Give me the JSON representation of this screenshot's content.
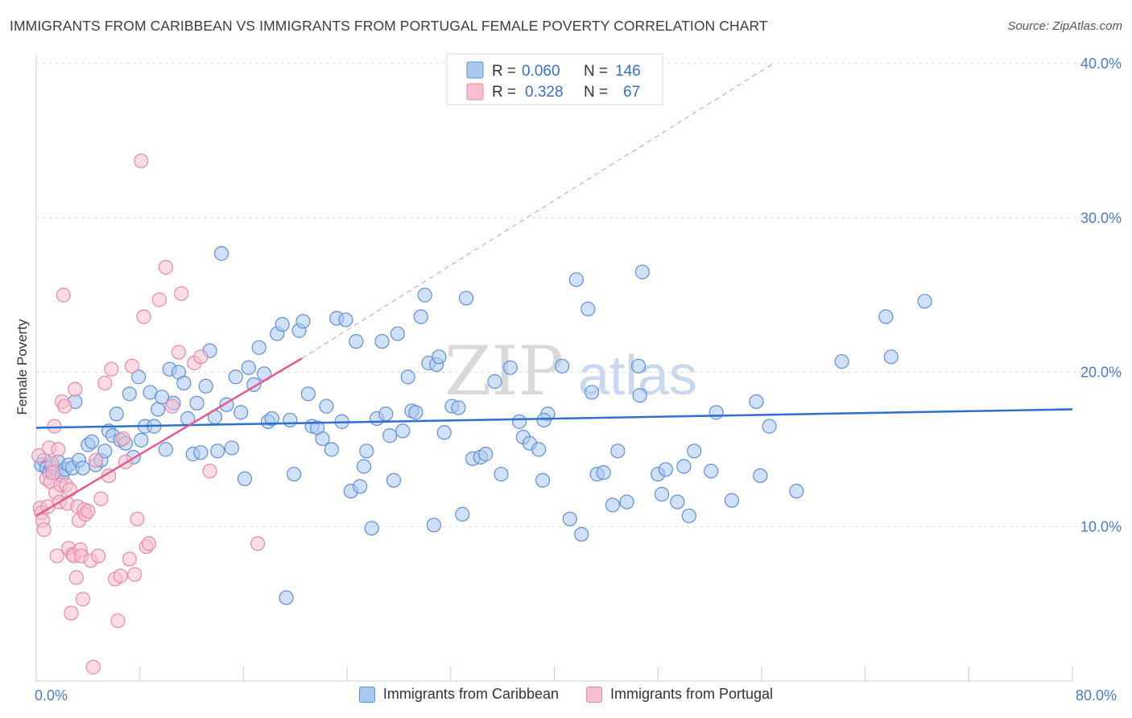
{
  "title": "IMMIGRANTS FROM CARIBBEAN VS IMMIGRANTS FROM PORTUGAL FEMALE POVERTY CORRELATION CHART",
  "source": "Source: ZipAtlas.com",
  "watermark": {
    "zip": "ZIP",
    "atlas": "atlas"
  },
  "legend": {
    "r_label": "R =",
    "n_label": "N =",
    "rows": [
      {
        "r": "0.060",
        "n": "146",
        "fill": "#a9c8f0",
        "stroke": "#5f8fd6"
      },
      {
        "r": "0.328",
        "n": "67",
        "fill": "#f7bfd0",
        "stroke": "#e889a8"
      }
    ]
  },
  "bottom_legend": [
    {
      "label": "Immigrants from Caribbean",
      "fill": "#a9c8f0",
      "stroke": "#5f8fd6"
    },
    {
      "label": "Immigrants from Portugal",
      "fill": "#f7bfd0",
      "stroke": "#e889a8"
    }
  ],
  "chart_data": {
    "type": "scatter",
    "title": "IMMIGRANTS FROM CARIBBEAN VS IMMIGRANTS FROM PORTUGAL FEMALE POVERTY CORRELATION CHART",
    "xlabel": "",
    "ylabel": "Female Poverty",
    "xlim": [
      0,
      80
    ],
    "ylim": [
      0,
      40
    ],
    "x_tick_labels": [
      "0.0%",
      "80.0%"
    ],
    "y_ticks": [
      10,
      20,
      30,
      40
    ],
    "y_tick_labels": [
      "10.0%",
      "20.0%",
      "30.0%",
      "40.0%"
    ],
    "grid": true,
    "legend_position": "top-center",
    "series": [
      {
        "name": "Immigrants from Caribbean",
        "color": "#5f8fd6",
        "fill": "#a9c8f0",
        "trend": {
          "x": [
            0,
            80
          ],
          "y": [
            16.4,
            17.6
          ],
          "color": "#2f6fcc"
        },
        "points": [
          [
            0.4,
            14
          ],
          [
            0.6,
            14.3
          ],
          [
            0.8,
            13.8
          ],
          [
            1,
            13.5
          ],
          [
            1.2,
            13.9
          ],
          [
            1.5,
            13.6
          ],
          [
            1.7,
            14.2
          ],
          [
            2,
            13.3
          ],
          [
            2.2,
            13.7
          ],
          [
            2.5,
            14
          ],
          [
            2.8,
            13.8
          ],
          [
            3,
            18.1
          ],
          [
            3.3,
            14.3
          ],
          [
            3.6,
            13.8
          ],
          [
            4,
            15.3
          ],
          [
            4.3,
            15.5
          ],
          [
            4.6,
            14
          ],
          [
            5,
            14.3
          ],
          [
            5.3,
            14.9
          ],
          [
            5.6,
            16.2
          ],
          [
            5.9,
            15.9
          ],
          [
            6.2,
            17.3
          ],
          [
            6.5,
            15.6
          ],
          [
            6.9,
            15.4
          ],
          [
            7.2,
            18.6
          ],
          [
            7.5,
            14.5
          ],
          [
            7.9,
            19.7
          ],
          [
            8.1,
            15.6
          ],
          [
            8.4,
            16.5
          ],
          [
            8.8,
            18.7
          ],
          [
            9.1,
            16.5
          ],
          [
            9.4,
            17.6
          ],
          [
            9.7,
            18.4
          ],
          [
            10,
            15
          ],
          [
            10.3,
            20.2
          ],
          [
            10.6,
            18
          ],
          [
            11,
            20
          ],
          [
            11.4,
            19.3
          ],
          [
            11.7,
            17
          ],
          [
            12.1,
            14.7
          ],
          [
            12.4,
            18
          ],
          [
            12.7,
            14.8
          ],
          [
            13.1,
            19.1
          ],
          [
            13.4,
            21.4
          ],
          [
            13.8,
            17.1
          ],
          [
            14,
            14.9
          ],
          [
            14.3,
            27.7
          ],
          [
            14.7,
            17.9
          ],
          [
            15.1,
            15.1
          ],
          [
            15.4,
            19.7
          ],
          [
            15.8,
            17.4
          ],
          [
            16.1,
            13.1
          ],
          [
            16.4,
            20.3
          ],
          [
            16.8,
            19.2
          ],
          [
            17.2,
            21.6
          ],
          [
            17.6,
            19.9
          ],
          [
            17.9,
            16.8
          ],
          [
            18.2,
            17
          ],
          [
            18.6,
            22.5
          ],
          [
            19,
            23.1
          ],
          [
            19.3,
            5.4
          ],
          [
            19.6,
            16.9
          ],
          [
            19.9,
            13.4
          ],
          [
            20.3,
            22.7
          ],
          [
            20.6,
            23.3
          ],
          [
            21,
            18.6
          ],
          [
            21.3,
            16.5
          ],
          [
            21.7,
            16.4
          ],
          [
            22.1,
            15.7
          ],
          [
            22.4,
            17.8
          ],
          [
            22.8,
            15
          ],
          [
            23.2,
            23.5
          ],
          [
            23.6,
            16.8
          ],
          [
            23.9,
            23.4
          ],
          [
            24.3,
            12.3
          ],
          [
            24.7,
            22
          ],
          [
            25,
            12.6
          ],
          [
            25.3,
            13.9
          ],
          [
            25.5,
            14.9
          ],
          [
            25.9,
            9.9
          ],
          [
            26.3,
            17
          ],
          [
            26.7,
            22
          ],
          [
            27,
            17.3
          ],
          [
            27.3,
            15.9
          ],
          [
            27.6,
            13
          ],
          [
            27.9,
            22.5
          ],
          [
            28.3,
            16.2
          ],
          [
            28.7,
            19.7
          ],
          [
            29,
            17.5
          ],
          [
            29.3,
            17.4
          ],
          [
            29.7,
            23.6
          ],
          [
            30,
            25
          ],
          [
            30.3,
            20.6
          ],
          [
            30.7,
            10.1
          ],
          [
            30.9,
            20.5
          ],
          [
            31.1,
            21
          ],
          [
            31.5,
            16.1
          ],
          [
            32.1,
            17.8
          ],
          [
            32.6,
            17.7
          ],
          [
            32.9,
            10.8
          ],
          [
            33.2,
            24.8
          ],
          [
            33.7,
            14.4
          ],
          [
            34.3,
            14.5
          ],
          [
            34.7,
            14.7
          ],
          [
            35.4,
            19.4
          ],
          [
            35.9,
            13.4
          ],
          [
            36.6,
            20.3
          ],
          [
            37.3,
            16.8
          ],
          [
            37.6,
            15.8
          ],
          [
            38.1,
            15.4
          ],
          [
            38.8,
            15
          ],
          [
            39.1,
            13
          ],
          [
            39.5,
            17.3
          ],
          [
            39.2,
            16.9
          ],
          [
            40.6,
            20.4
          ],
          [
            41.2,
            10.5
          ],
          [
            41.7,
            26
          ],
          [
            42.1,
            9.5
          ],
          [
            42.6,
            24.1
          ],
          [
            42.9,
            18.7
          ],
          [
            43.3,
            13.4
          ],
          [
            43.8,
            13.5
          ],
          [
            44.5,
            11.4
          ],
          [
            44.9,
            14.9
          ],
          [
            45.6,
            11.6
          ],
          [
            46.6,
            18.5
          ],
          [
            46.8,
            26.5
          ],
          [
            46.5,
            20.4
          ],
          [
            48,
            13.4
          ],
          [
            48.3,
            12.1
          ],
          [
            48.6,
            13.7
          ],
          [
            49.5,
            11.6
          ],
          [
            50,
            13.9
          ],
          [
            50.8,
            14.9
          ],
          [
            50.4,
            10.7
          ],
          [
            52.1,
            13.6
          ],
          [
            52.5,
            17.4
          ],
          [
            53.7,
            11.7
          ],
          [
            55.6,
            18.1
          ],
          [
            55.9,
            13.3
          ],
          [
            56.6,
            16.5
          ],
          [
            58.7,
            12.3
          ],
          [
            62.2,
            20.7
          ],
          [
            65.6,
            23.6
          ],
          [
            66,
            21
          ],
          [
            68.6,
            24.6
          ]
        ]
      },
      {
        "name": "Immigrants from Portugal",
        "color": "#e889a8",
        "fill": "#f7bfd0",
        "trend": {
          "x": [
            0,
            20.5
          ],
          "y": [
            10.7,
            20.9
          ],
          "color": "#e45c8c"
        },
        "trend_ext": {
          "x": [
            20.5,
            56.9
          ],
          "y": [
            20.9,
            40.0
          ]
        },
        "points": [
          [
            0.2,
            14.6
          ],
          [
            0.3,
            11.2
          ],
          [
            0.4,
            10.9
          ],
          [
            0.5,
            10.4
          ],
          [
            0.6,
            9.8
          ],
          [
            0.8,
            13.1
          ],
          [
            0.9,
            11.3
          ],
          [
            1,
            15.1
          ],
          [
            1.1,
            12.9
          ],
          [
            1.2,
            14.1
          ],
          [
            1.3,
            13.5
          ],
          [
            1.4,
            16.5
          ],
          [
            1.5,
            12.2
          ],
          [
            1.6,
            8.1
          ],
          [
            1.7,
            15
          ],
          [
            1.8,
            11.6
          ],
          [
            1.9,
            12.7
          ],
          [
            2,
            18.1
          ],
          [
            2.1,
            25
          ],
          [
            2.2,
            17.8
          ],
          [
            2.3,
            12.7
          ],
          [
            2.4,
            11.5
          ],
          [
            2.5,
            8.6
          ],
          [
            2.6,
            12.4
          ],
          [
            2.7,
            4.4
          ],
          [
            2.8,
            8.2
          ],
          [
            2.9,
            8.1
          ],
          [
            3,
            18.9
          ],
          [
            3.1,
            6.7
          ],
          [
            3.2,
            11.3
          ],
          [
            3.3,
            10.4
          ],
          [
            3.4,
            8.5
          ],
          [
            3.5,
            8.1
          ],
          [
            3.6,
            5.3
          ],
          [
            3.7,
            11.1
          ],
          [
            3.8,
            10.8
          ],
          [
            4,
            11
          ],
          [
            4.2,
            7.8
          ],
          [
            4.4,
            0.9
          ],
          [
            4.6,
            14.3
          ],
          [
            4.8,
            8.1
          ],
          [
            5,
            11.8
          ],
          [
            5.3,
            19.3
          ],
          [
            5.6,
            13.3
          ],
          [
            5.8,
            20.2
          ],
          [
            6.1,
            6.6
          ],
          [
            6.3,
            3.9
          ],
          [
            6.5,
            6.8
          ],
          [
            6.7,
            15.7
          ],
          [
            6.9,
            14.2
          ],
          [
            7.2,
            7.9
          ],
          [
            7.4,
            20.4
          ],
          [
            7.6,
            6.9
          ],
          [
            7.8,
            10.5
          ],
          [
            8.1,
            33.7
          ],
          [
            8.3,
            23.6
          ],
          [
            8.5,
            8.7
          ],
          [
            8.7,
            8.9
          ],
          [
            9.5,
            24.7
          ],
          [
            10,
            26.8
          ],
          [
            10.5,
            17.8
          ],
          [
            11,
            21.3
          ],
          [
            11.2,
            25.1
          ],
          [
            12.2,
            20.6
          ],
          [
            12.7,
            21
          ],
          [
            13.4,
            13.6
          ],
          [
            17.1,
            8.9
          ]
        ]
      }
    ]
  }
}
